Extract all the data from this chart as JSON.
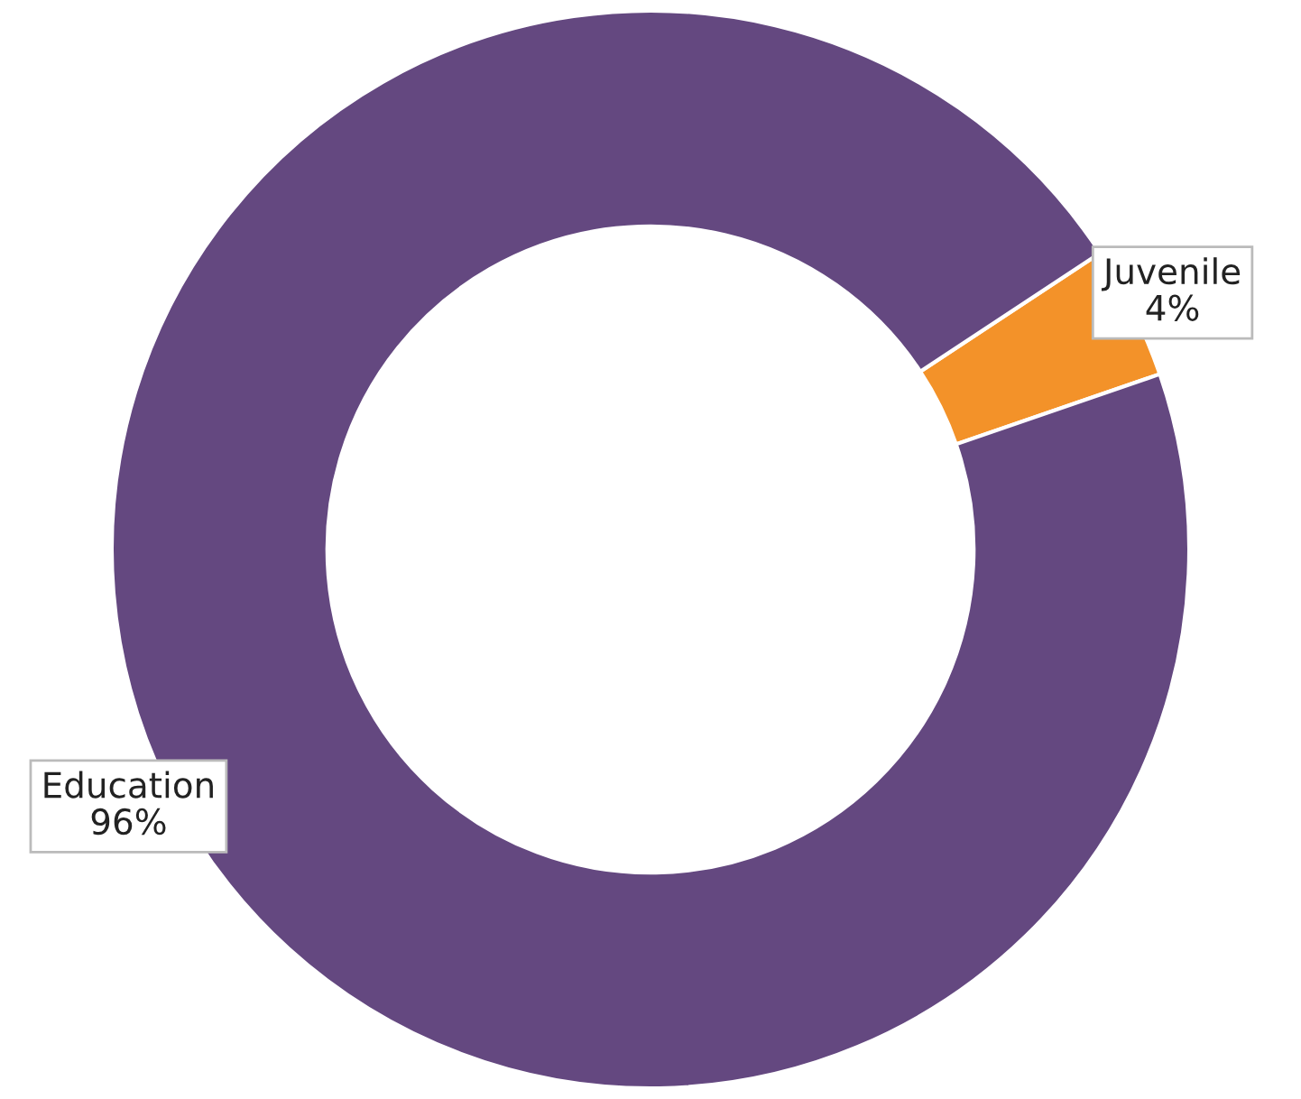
{
  "chart_data": {
    "type": "donut",
    "categories": [
      "Juvenile",
      "Education"
    ],
    "values": [
      4,
      96
    ],
    "colors": [
      "#f39229",
      "#644880"
    ],
    "value_labels": [
      "4%",
      "96%"
    ],
    "legend": false
  }
}
